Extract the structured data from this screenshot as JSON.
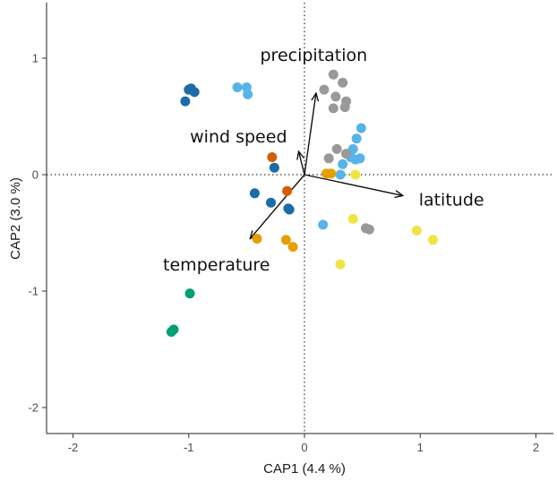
{
  "chart_data": {
    "type": "scatter",
    "title": "",
    "xlabel": "CAP1 (4.4 %)",
    "ylabel": "CAP2 (3.0 %)",
    "xlim": [
      -2.2,
      2.2
    ],
    "ylim": [
      -2.22,
      1.45
    ],
    "x_ticks": [
      -2,
      -1,
      0,
      1,
      2
    ],
    "y_ticks": [
      -2,
      -1,
      0,
      1
    ],
    "reference_lines": {
      "x": 0,
      "y": 0,
      "style": "dotted"
    },
    "grid": false,
    "legend": "none",
    "series": [
      {
        "color": "#1b6ca8",
        "points": [
          [
            -1.0,
            0.73
          ],
          [
            -0.95,
            0.71
          ],
          [
            -1.03,
            0.63
          ],
          [
            -0.98,
            0.74
          ],
          [
            -0.26,
            0.06
          ],
          [
            -0.43,
            -0.16
          ],
          [
            -0.29,
            -0.24
          ],
          [
            -0.13,
            -0.3
          ],
          [
            -0.14,
            -0.29
          ]
        ]
      },
      {
        "color": "#56b4e9",
        "points": [
          [
            -0.58,
            0.75
          ],
          [
            -0.5,
            0.75
          ],
          [
            -0.49,
            0.69
          ],
          [
            0.49,
            0.4
          ],
          [
            0.45,
            0.31
          ],
          [
            0.42,
            0.22
          ],
          [
            0.44,
            0.13
          ],
          [
            0.48,
            0.14
          ],
          [
            0.4,
            0.15
          ],
          [
            0.33,
            0.09
          ],
          [
            0.31,
            0.0
          ],
          [
            0.16,
            -0.43
          ]
        ]
      },
      {
        "color": "#999999",
        "points": [
          [
            0.25,
            0.86
          ],
          [
            0.33,
            0.79
          ],
          [
            0.17,
            0.73
          ],
          [
            0.27,
            0.67
          ],
          [
            0.36,
            0.63
          ],
          [
            0.25,
            0.57
          ],
          [
            0.35,
            0.58
          ],
          [
            0.28,
            0.22
          ],
          [
            0.36,
            0.18
          ],
          [
            0.21,
            0.14
          ],
          [
            0.53,
            -0.46
          ],
          [
            0.56,
            -0.47
          ]
        ]
      },
      {
        "color": "#d55e00",
        "points": [
          [
            -0.28,
            0.15
          ],
          [
            -0.15,
            -0.14
          ]
        ]
      },
      {
        "color": "#e69f00",
        "points": [
          [
            0.19,
            0.01
          ],
          [
            0.23,
            0.01
          ],
          [
            -0.41,
            -0.55
          ],
          [
            -0.16,
            -0.56
          ],
          [
            -0.1,
            -0.62
          ]
        ]
      },
      {
        "color": "#f0e442",
        "points": [
          [
            0.44,
            0.0
          ],
          [
            0.42,
            -0.38
          ],
          [
            0.97,
            -0.48
          ],
          [
            1.11,
            -0.56
          ],
          [
            0.31,
            -0.77
          ]
        ]
      },
      {
        "color": "#009e73",
        "points": [
          [
            -0.99,
            -1.02
          ],
          [
            -1.13,
            -1.33
          ],
          [
            -1.15,
            -1.35
          ]
        ]
      }
    ],
    "vectors": [
      {
        "label": "precipitation",
        "x": 0.1,
        "y": 0.7,
        "label_pos": [
          0.08,
          1.03
        ]
      },
      {
        "label": "wind speed",
        "x": -0.05,
        "y": 0.2,
        "label_pos": [
          -0.57,
          0.33
        ]
      },
      {
        "label": "latitude",
        "x": 0.85,
        "y": -0.18,
        "label_pos": [
          1.27,
          -0.21
        ]
      },
      {
        "label": "temperature",
        "x": -0.47,
        "y": -0.55,
        "label_pos": [
          -0.76,
          -0.77
        ]
      }
    ]
  }
}
